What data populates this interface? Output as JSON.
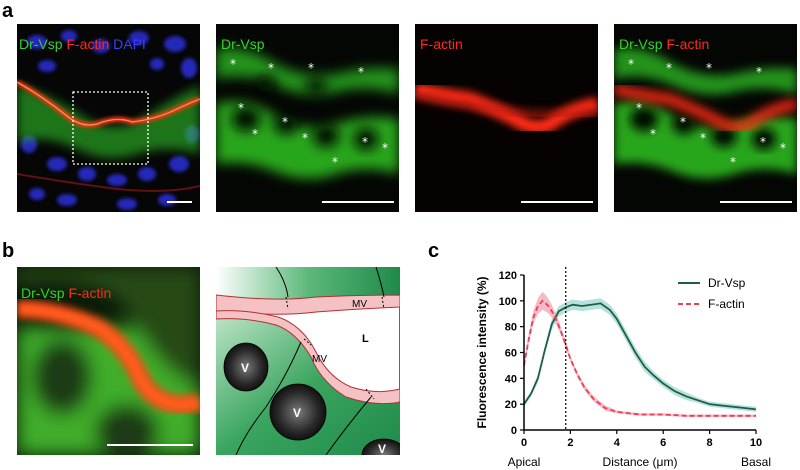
{
  "panel_a": {
    "letter": "a",
    "tiles": [
      {
        "labels": [
          {
            "text": "Dr-Vsp",
            "color": "green"
          },
          {
            "text": "F-actin",
            "color": "red"
          },
          {
            "text": "DAPI",
            "color": "blue"
          }
        ]
      },
      {
        "labels": [
          {
            "text": "Dr-Vsp",
            "color": "green"
          }
        ]
      },
      {
        "labels": [
          {
            "text": "F-actin",
            "color": "red"
          }
        ]
      },
      {
        "labels": [
          {
            "text": "Dr-Vsp",
            "color": "green"
          },
          {
            "text": "F-actin",
            "color": "red"
          }
        ]
      }
    ],
    "marker": "*"
  },
  "panel_b": {
    "letter": "b",
    "image_labels": [
      {
        "text": "Dr-Vsp",
        "color": "green"
      },
      {
        "text": "F-actin",
        "color": "red"
      }
    ],
    "schematic_labels": {
      "mv_top": "MV",
      "mv_mid": "MV",
      "lumen": "L",
      "vesicle": "V"
    }
  },
  "panel_c": {
    "letter": "c",
    "xlabel_center": "Distance (μm)",
    "xlabel_left": "Apical",
    "xlabel_right": "Basal",
    "colors": {
      "dr_vsp": "#1c5e4a",
      "dr_vsp_band": "#9fd8cf",
      "f_actin": "#e8434f",
      "f_actin_band": "#f2a3b8"
    }
  },
  "chart_data": {
    "type": "line",
    "ylabel": "Fluorescence intensity (%)",
    "xlabel": "Distance (μm)",
    "xlim": [
      0,
      10
    ],
    "ylim": [
      0,
      120
    ],
    "xticks": [
      0,
      2,
      4,
      6,
      8,
      10
    ],
    "yticks": [
      0,
      20,
      40,
      60,
      80,
      100,
      120
    ],
    "vline_x": 1.8,
    "legend_position": "top-right",
    "series": [
      {
        "name": "Dr-Vsp",
        "style": "solid",
        "x": [
          0,
          0.3,
          0.6,
          0.9,
          1.2,
          1.5,
          1.8,
          2.1,
          2.5,
          2.9,
          3.3,
          3.7,
          4.0,
          4.4,
          4.8,
          5.2,
          5.6,
          6.0,
          6.5,
          7.0,
          7.5,
          8.0,
          8.5,
          9.0,
          9.5,
          10.0
        ],
        "y": [
          20,
          28,
          40,
          62,
          82,
          92,
          95,
          97,
          96,
          97,
          98,
          93,
          86,
          73,
          60,
          49,
          42,
          36,
          30,
          26,
          23,
          20,
          19,
          18,
          17,
          16
        ],
        "band": [
          2,
          2,
          3,
          3,
          4,
          4,
          4,
          4,
          4,
          4,
          4,
          4,
          4,
          4,
          4,
          4,
          3,
          3,
          3,
          3,
          2,
          2,
          2,
          2,
          2,
          2
        ]
      },
      {
        "name": "F-actin",
        "style": "dashed",
        "x": [
          0,
          0.2,
          0.4,
          0.6,
          0.8,
          1.0,
          1.2,
          1.4,
          1.6,
          1.8,
          2.0,
          2.3,
          2.6,
          3.0,
          3.5,
          4.0,
          5.0,
          6.0,
          7.0,
          8.0,
          9.0,
          10.0
        ],
        "y": [
          50,
          70,
          87,
          96,
          100,
          97,
          92,
          85,
          76,
          66,
          55,
          43,
          33,
          24,
          17,
          14,
          12,
          12,
          11,
          11,
          11,
          11
        ],
        "band": [
          3,
          4,
          5,
          6,
          7,
          6,
          5,
          4,
          3,
          3,
          2,
          2,
          2,
          2,
          2,
          1,
          1,
          1,
          1,
          1,
          1,
          1
        ]
      }
    ]
  }
}
